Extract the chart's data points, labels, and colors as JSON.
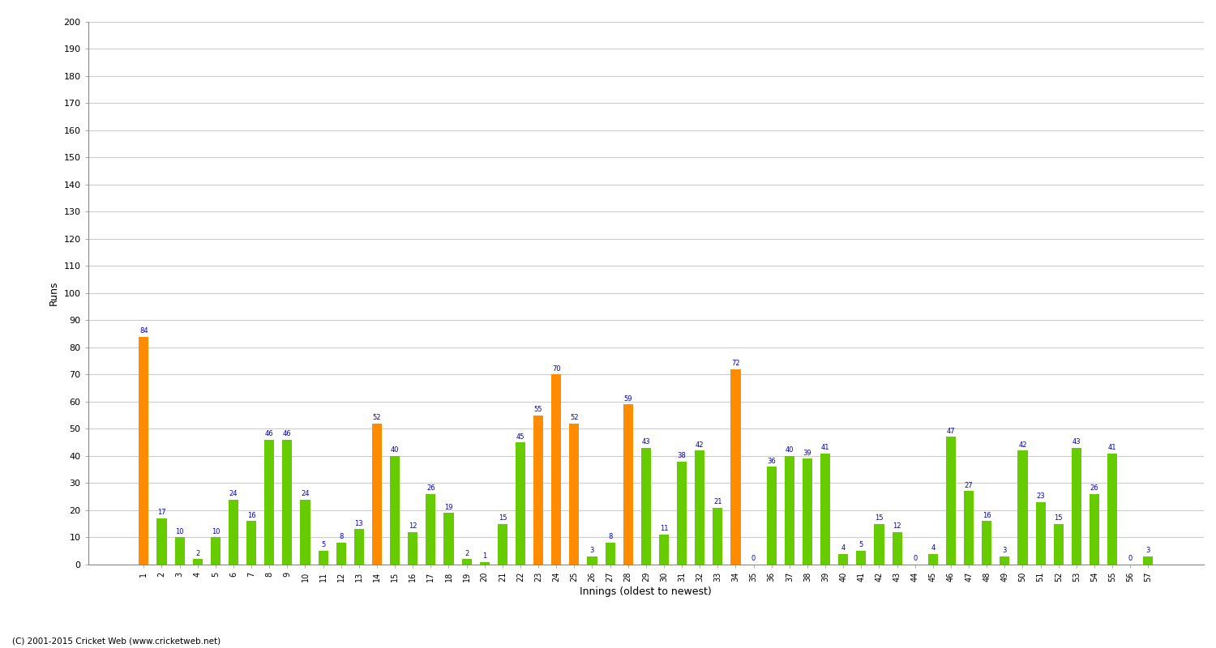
{
  "xlabel": "Innings (oldest to newest)",
  "ylabel": "Runs",
  "values": [
    84,
    17,
    10,
    2,
    10,
    24,
    16,
    46,
    46,
    24,
    5,
    8,
    13,
    52,
    40,
    12,
    26,
    19,
    2,
    1,
    15,
    45,
    55,
    70,
    52,
    3,
    8,
    59,
    43,
    11,
    38,
    42,
    21,
    72,
    0,
    36,
    40,
    39,
    41,
    4,
    5,
    15,
    12,
    0,
    4,
    47,
    27,
    16,
    3,
    42,
    23,
    15,
    43,
    26,
    41,
    0,
    3
  ],
  "innings": [
    1,
    2,
    3,
    4,
    5,
    6,
    7,
    8,
    9,
    10,
    11,
    12,
    13,
    14,
    15,
    16,
    17,
    18,
    19,
    20,
    21,
    22,
    23,
    24,
    25,
    26,
    27,
    28,
    29,
    30,
    31,
    32,
    33,
    34,
    35,
    36,
    37,
    38,
    39,
    40,
    41,
    42,
    43,
    44,
    45,
    46,
    47,
    48,
    49,
    50,
    51,
    52,
    53,
    54,
    55,
    56,
    57
  ],
  "highlight_color": "#FF8C00",
  "normal_color": "#66CC00",
  "highlight_threshold": 50,
  "background_color": "#FFFFFF",
  "grid_color": "#CCCCCC",
  "text_color": "#0000CC",
  "ylim": [
    0,
    200
  ],
  "yticks": [
    0,
    10,
    20,
    30,
    40,
    50,
    60,
    70,
    80,
    90,
    100,
    110,
    120,
    130,
    140,
    150,
    160,
    170,
    180,
    190,
    200
  ],
  "footnote": "(C) 2001-2015 Cricket Web (www.cricketweb.net)"
}
